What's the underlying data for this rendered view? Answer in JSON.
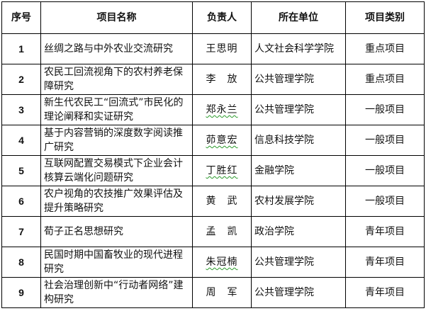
{
  "headers": {
    "no": "序号",
    "name": "项目名称",
    "leader": "负责人",
    "unit": "所在单位",
    "category": "项目类别"
  },
  "rows": [
    {
      "no": "1",
      "name": "丝绸之路与中外农业交流研究",
      "leader": "王思明",
      "unit": "人文社会科学学院",
      "category": "重点项目"
    },
    {
      "no": "2",
      "name": "农民工回流视角下的农村养老保障研究",
      "leader": "李　放",
      "unit": "公共管理学院",
      "category": "重点项目"
    },
    {
      "no": "3",
      "name": "新生代农民工“回流式”市民化的理论阐释和实证研究",
      "leader": "郑永兰",
      "unit": "公共管理学院",
      "category": "一般项目"
    },
    {
      "no": "4",
      "name": "基于内容营销的深度数字阅读推广研究",
      "leader": "茆意宏",
      "unit": "信息科技学院",
      "category": "一般项目"
    },
    {
      "no": "5",
      "name": "互联网配置交易模式下企业会计核算云端化问题研究",
      "leader": "丁胜红",
      "unit": "金融学院",
      "category": "一般项目"
    },
    {
      "no": "6",
      "name": "农户视角的农技推广效果评估及提升策略研究",
      "leader": "黄　武",
      "unit": "农村发展学院",
      "category": "一般项目"
    },
    {
      "no": "7",
      "name": "荀子正名思想研究",
      "leader": "孟　凯",
      "unit": "政治学院",
      "category": "青年项目"
    },
    {
      "no": "8",
      "name": "民国时期中国畜牧业的现代进程研究",
      "leader": "朱冠楠",
      "unit": "公共管理学院",
      "category": "青年项目"
    },
    {
      "no": "9",
      "name": "社会治理创新中“行动者网络”建构研究",
      "leader": "周　军",
      "unit": "公共管理学院",
      "category": "青年项目"
    }
  ]
}
